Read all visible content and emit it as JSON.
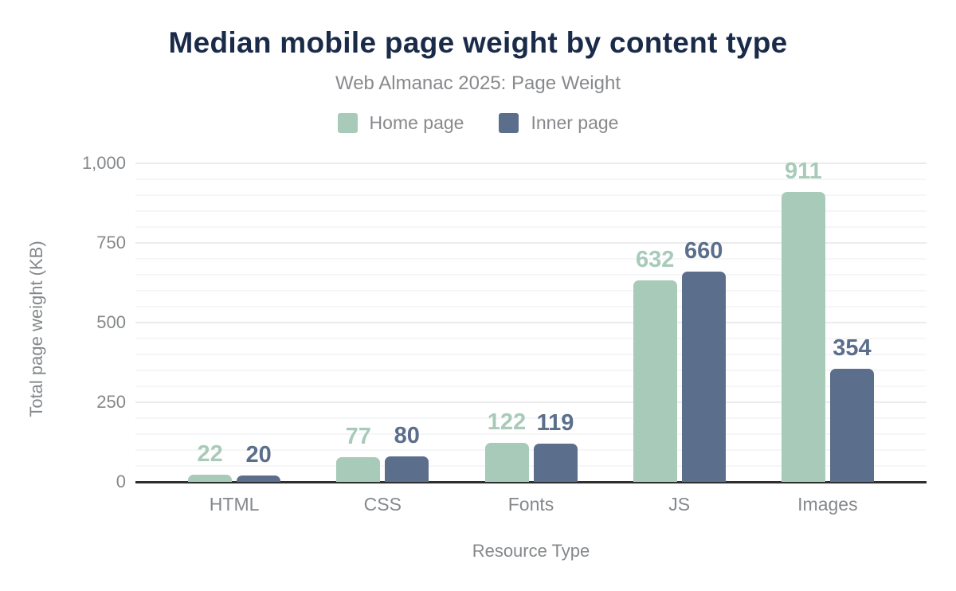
{
  "title": "Median mobile page weight by content type",
  "subtitle": "Web Almanac 2025: Page Weight",
  "colors": {
    "home_page": "#a8cab8",
    "inner_page": "#5b6e8c",
    "title_text": "#1a2b49",
    "muted_text": "#87898c",
    "axis_text": "#85888b",
    "axis_line": "#2e2e2e",
    "grid_major": "#ececee",
    "grid_minor": "#f5f6f7"
  },
  "chart_data": {
    "type": "bar",
    "title": "Median mobile page weight by content type",
    "subtitle": "Web Almanac 2025: Page Weight",
    "categories": [
      "HTML",
      "CSS",
      "Fonts",
      "JS",
      "Images"
    ],
    "series": [
      {
        "name": "Home page",
        "color": "#a8cab8",
        "values": [
          22,
          77,
          122,
          632,
          911
        ]
      },
      {
        "name": "Inner page",
        "color": "#5b6e8c",
        "values": [
          20,
          80,
          119,
          660,
          354
        ]
      }
    ],
    "xlabel": "Resource Type",
    "ylabel": "Total page weight (KB)",
    "ylim": [
      0,
      1000
    ],
    "yticks": [
      0,
      250,
      500,
      750,
      1000
    ],
    "ytick_labels": [
      "0",
      "250",
      "500",
      "750",
      "1,000"
    ],
    "minor_grid_step": 50,
    "grid": true,
    "legend_position": "top",
    "value_labels": true
  }
}
